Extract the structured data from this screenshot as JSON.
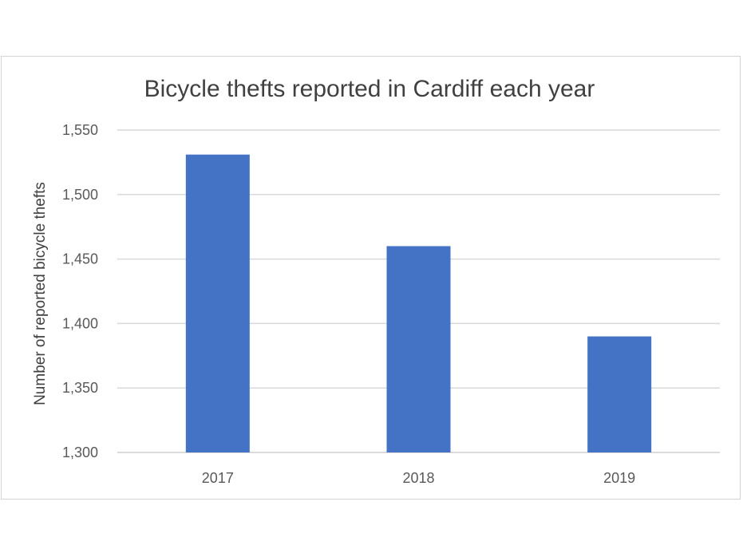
{
  "chart_data": {
    "type": "bar",
    "title": "Bicycle thefts reported in Cardiff each year",
    "xlabel": "",
    "ylabel": "Number of reported bicycle thefts",
    "categories": [
      "2017",
      "2018",
      "2019"
    ],
    "values": [
      1531,
      1460,
      1390
    ],
    "ylim": [
      1300,
      1550
    ],
    "yticks": [
      1300,
      1350,
      1400,
      1450,
      1500,
      1550
    ],
    "ytick_labels": [
      "1,300",
      "1,350",
      "1,400",
      "1,450",
      "1,500",
      "1,550"
    ],
    "grid": true,
    "legend": "none",
    "bar_color": "#4472c4"
  }
}
